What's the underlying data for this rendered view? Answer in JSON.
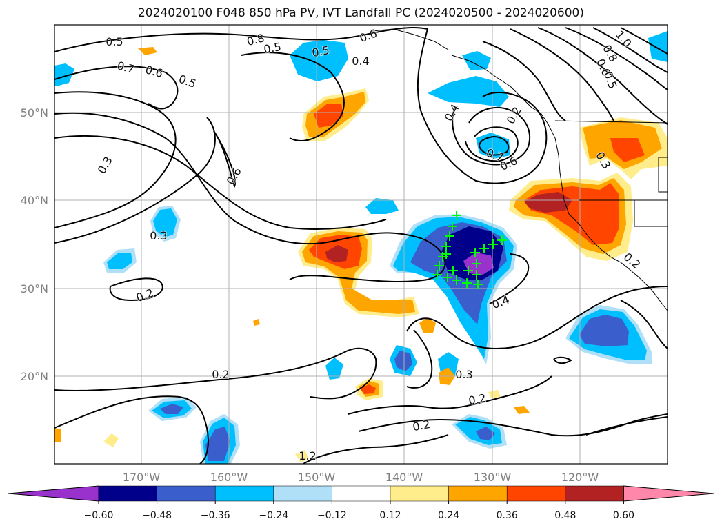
{
  "title": "2024020100 F048 850 hPa PV, IVT Landfall PC (2024020500 - 2024020600)",
  "longitude_ticks": [
    "170°W",
    "160°W",
    "150°W",
    "140°W",
    "130°W",
    "120°W"
  ],
  "latitude_ticks": [
    "50°N",
    "40°N",
    "30°N",
    "20°N"
  ],
  "contour_labels": [
    "0.5",
    "0.8",
    "0.5",
    "0.5",
    "0.6",
    "0.4",
    "0.7",
    "0.6",
    "0.5",
    "0.3",
    "0.6",
    "0.4",
    "0.7",
    "0.6",
    "0.2",
    "0.3",
    "0.2",
    "0.2",
    "0.4",
    "0.3",
    "0.2",
    "0.2",
    "1.2",
    "1.0",
    "0.8",
    "0.6",
    "0.5",
    "0.3",
    "0.2"
  ],
  "colorbar": {
    "colors": [
      "#9932cc",
      "#00008b",
      "#3a5fcd",
      "#00bfff",
      "#afe0f7",
      "#ffffff",
      "#ffec8b",
      "#ffa500",
      "#ff4500",
      "#b22222",
      "#ff88aa"
    ],
    "tick_labels": [
      "−0.60",
      "−0.48",
      "−0.36",
      "−0.24",
      "−0.12",
      "0.12",
      "0.24",
      "0.36",
      "0.48",
      "0.60"
    ]
  },
  "landfall_markers": 20,
  "colors": {
    "frame": "#000000",
    "grid": "#b0b0b0",
    "marker": "#00ff00"
  }
}
